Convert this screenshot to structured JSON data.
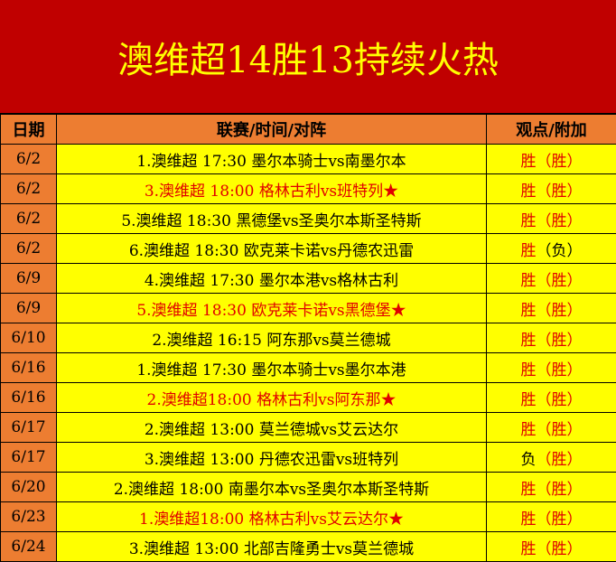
{
  "title": "澳维超14胜13持续火热",
  "headers": [
    "日期",
    "联赛/时间/对阵",
    "观点/附加"
  ],
  "colors": {
    "title_bg": "#c00000",
    "title_text": "#ffff00",
    "header_bg": "#ed7d31",
    "cell_bg": "#ffff00",
    "highlight": "#e00000"
  },
  "rows": [
    {
      "date": "6/2",
      "match": "1.澳维超 17:30 墨尔本骑士vs南墨尔本",
      "highlight": false,
      "pick": "胜",
      "extra": "（胜）",
      "pick_red": true,
      "extra_red": true
    },
    {
      "date": "6/2",
      "match": "3.澳维超 18:00 格林古利vs班特列★",
      "highlight": true,
      "pick": "胜",
      "extra": "（胜）",
      "pick_red": true,
      "extra_red": true
    },
    {
      "date": "6/2",
      "match": "5.澳维超 18:30 黑德堡vs圣奥尔本斯圣特斯",
      "highlight": false,
      "pick": "胜",
      "extra": "（胜）",
      "pick_red": true,
      "extra_red": true
    },
    {
      "date": "6/2",
      "match": "6.澳维超 18:30 欧克莱卡诺vs丹德农迅雷",
      "highlight": false,
      "pick": "胜",
      "extra": "（负）",
      "pick_red": true,
      "extra_red": false
    },
    {
      "date": "6/9",
      "match": "4.澳维超 17:30 墨尔本港vs格林古利",
      "highlight": false,
      "pick": "胜",
      "extra": "（胜）",
      "pick_red": true,
      "extra_red": true
    },
    {
      "date": "6/9",
      "match": "5.澳维超 18:30 欧克莱卡诺vs黑德堡★",
      "highlight": true,
      "pick": "胜",
      "extra": "（胜）",
      "pick_red": true,
      "extra_red": true
    },
    {
      "date": "6/10",
      "match": "2.澳维超 16:15 阿东那vs莫兰德城",
      "highlight": false,
      "pick": "胜",
      "extra": "（胜）",
      "pick_red": true,
      "extra_red": true
    },
    {
      "date": "6/16",
      "match": "1.澳维超 17:30 墨尔本骑士vs墨尔本港",
      "highlight": false,
      "pick": "胜",
      "extra": "（胜）",
      "pick_red": true,
      "extra_red": true
    },
    {
      "date": "6/16",
      "match": "2.澳维超18:00 格林古利vs阿东那★",
      "highlight": true,
      "pick": "胜",
      "extra": "（胜）",
      "pick_red": true,
      "extra_red": true
    },
    {
      "date": "6/17",
      "match": "2.澳维超 13:00 莫兰德城vs艾云达尔",
      "highlight": false,
      "pick": "胜",
      "extra": "（胜）",
      "pick_red": true,
      "extra_red": true
    },
    {
      "date": "6/17",
      "match": "3.澳维超 13:00 丹德农迅雷vs班特列",
      "highlight": false,
      "pick": "负",
      "extra": "（胜）",
      "pick_red": false,
      "extra_red": true
    },
    {
      "date": "6/20",
      "match": "2.澳维超 18:00 南墨尔本vs圣奥尔本斯圣特斯",
      "highlight": false,
      "pick": "胜",
      "extra": "（胜）",
      "pick_red": true,
      "extra_red": true
    },
    {
      "date": "6/23",
      "match": "1.澳维超18:00 格林古利vs艾云达尔★",
      "highlight": true,
      "pick": "胜",
      "extra": "（胜）",
      "pick_red": true,
      "extra_red": true
    },
    {
      "date": "6/24",
      "match": "3.澳维超 13:00 北部吉隆勇士vs莫兰德城",
      "highlight": false,
      "pick": "胜",
      "extra": "（胜）",
      "pick_red": true,
      "extra_red": true
    }
  ]
}
